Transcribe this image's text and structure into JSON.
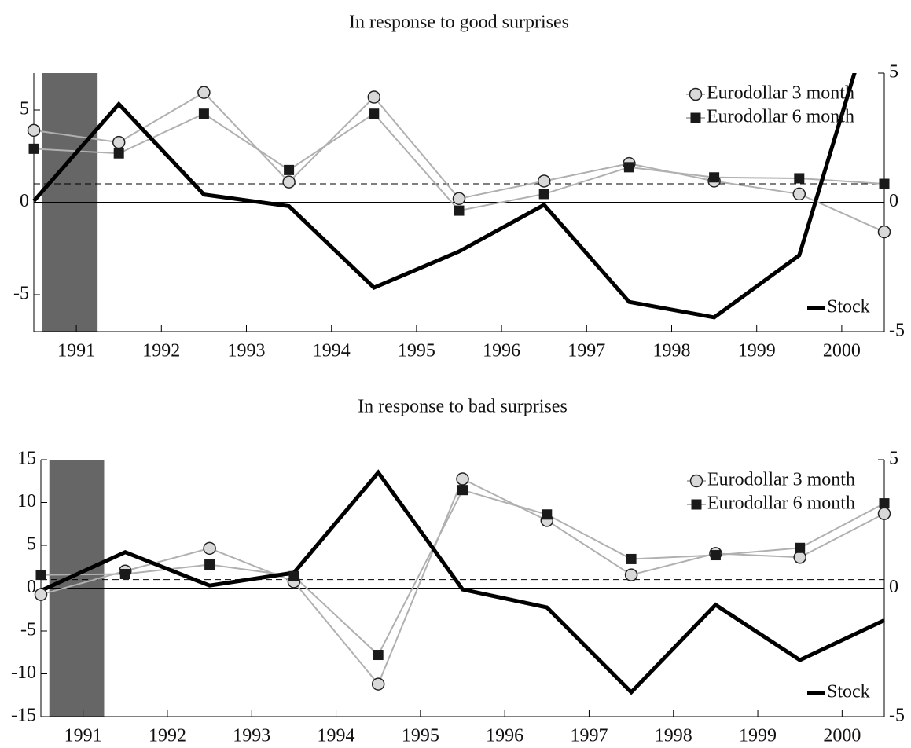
{
  "chart_data": [
    {
      "type": "line",
      "title": "In response to good surprises",
      "x": [
        1990.5,
        1991.5,
        1992.5,
        1993.5,
        1994.5,
        1995.5,
        1996.5,
        1997.5,
        1998.5,
        1999.5,
        2000.5
      ],
      "xlim": [
        1990.5,
        2000.5
      ],
      "xticks": [
        1991,
        1992,
        1993,
        1994,
        1995,
        1996,
        1997,
        1998,
        1999,
        2000
      ],
      "ylim": [
        -7,
        7
      ],
      "yticks": [
        -5,
        0,
        5
      ],
      "y2lim": [
        -5,
        5
      ],
      "y2ticks": [
        -5,
        0,
        5
      ],
      "shaded_region": [
        1990.6,
        1991.25
      ],
      "ref_line": 1,
      "legend": "upper right",
      "series": [
        {
          "name": "Eurodollar 3 month",
          "color": "#b0b0b0",
          "marker": "circle",
          "marker_color": "#d9d9d9",
          "values": [
            3.9,
            3.25,
            5.95,
            1.1,
            5.7,
            0.2,
            1.15,
            2.1,
            1.15,
            0.45,
            -1.6
          ]
        },
        {
          "name": "Eurodollar 6 month",
          "color": "#b0b0b0",
          "marker": "square",
          "marker_color": "#1a1a1a",
          "values": [
            2.9,
            2.65,
            4.8,
            1.75,
            4.8,
            -0.45,
            0.45,
            1.9,
            1.35,
            1.3,
            1.0
          ]
        },
        {
          "name": "Stock",
          "color": "#000000",
          "axis": "y2",
          "values": [
            0.05,
            3.8,
            0.3,
            -0.15,
            -3.3,
            -1.9,
            -0.1,
            -3.85,
            -4.45,
            -2.05,
            8.8
          ]
        }
      ]
    },
    {
      "type": "line",
      "title": "In response to bad surprises",
      "x": [
        1990.5,
        1991.5,
        1992.5,
        1993.5,
        1994.5,
        1995.5,
        1996.5,
        1997.5,
        1998.5,
        1999.5,
        2000.5
      ],
      "xlim": [
        1990.5,
        2000.5
      ],
      "xticks": [
        1991,
        1992,
        1993,
        1994,
        1995,
        1996,
        1997,
        1998,
        1999,
        2000
      ],
      "ylim": [
        -15,
        15
      ],
      "yticks": [
        -15,
        -10,
        -5,
        0,
        5,
        10,
        15
      ],
      "y2lim": [
        -5,
        5
      ],
      "y2ticks": [
        -5,
        0,
        5
      ],
      "shaded_region": [
        1990.6,
        1991.25
      ],
      "ref_line": 1,
      "legend": "upper right",
      "series": [
        {
          "name": "Eurodollar 3 month",
          "color": "#b0b0b0",
          "marker": "circle",
          "marker_color": "#d9d9d9",
          "values": [
            -0.75,
            2.0,
            4.65,
            0.75,
            -11.2,
            12.75,
            7.9,
            1.55,
            4.05,
            3.6,
            8.7
          ]
        },
        {
          "name": "Eurodollar 6 month",
          "color": "#b0b0b0",
          "marker": "square",
          "marker_color": "#1a1a1a",
          "values": [
            1.55,
            1.65,
            2.75,
            1.4,
            -7.8,
            11.45,
            8.6,
            3.4,
            3.85,
            4.7,
            9.9
          ]
        },
        {
          "name": "Stock",
          "color": "#000000",
          "axis": "y2",
          "values": [
            -0.1,
            1.4,
            0.1,
            0.6,
            4.5,
            -0.05,
            -0.75,
            -4.05,
            -0.65,
            -2.8,
            -1.25
          ]
        }
      ]
    }
  ]
}
